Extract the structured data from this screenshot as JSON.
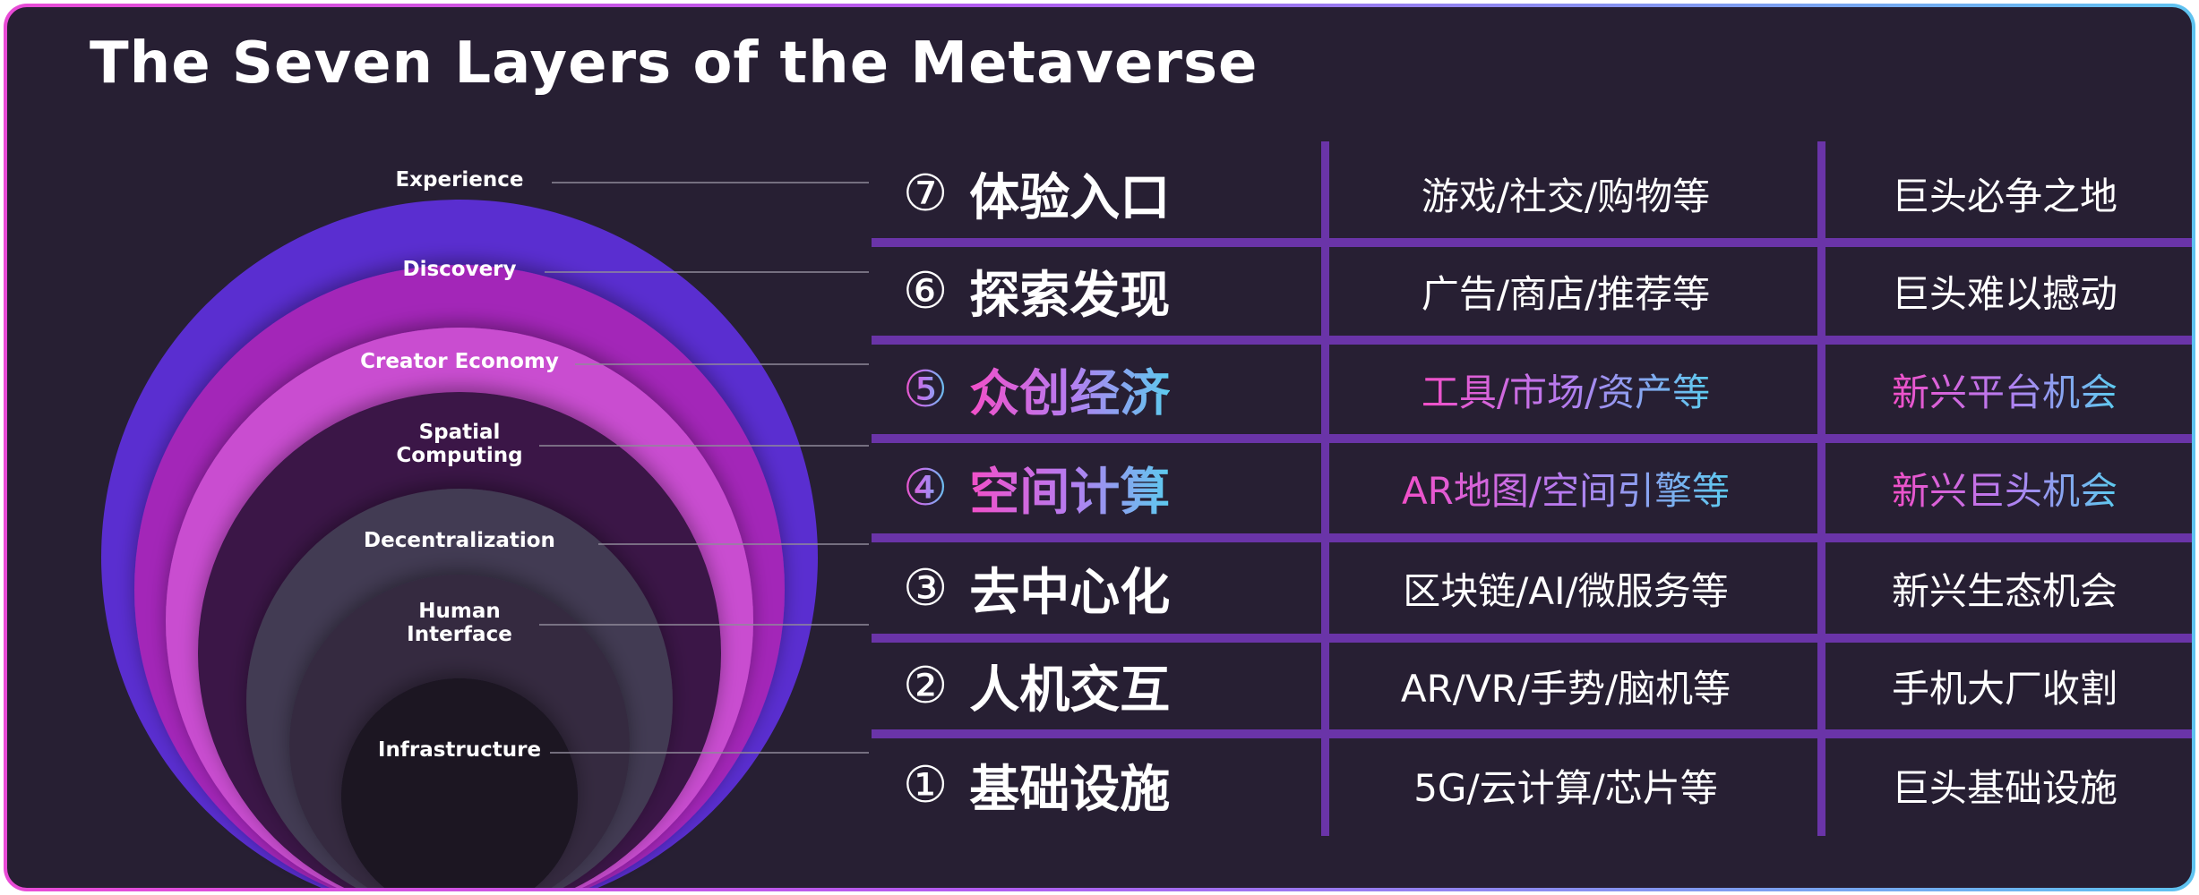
{
  "title": "The Seven Layers of the Metaverse",
  "colors": {
    "background": "#271f33",
    "grid": "#6a34a8",
    "highlight_gradient": [
      "#f24fc8",
      "#b67cf0",
      "#5ccbef"
    ],
    "ring_experience": "#5a2ed0",
    "ring_discovery": "#a326b8",
    "ring_creator_economy": "#c94ed0",
    "ring_spatial_computing": "#3a1446",
    "ring_decentralization": "#433a52",
    "ring_human_interface": "#342b40",
    "ring_infrastructure": "#1a1420"
  },
  "circle_labels": [
    {
      "text": "Experience"
    },
    {
      "text": "Discovery"
    },
    {
      "text": "Creator Economy"
    },
    {
      "text": "Spatial\nComputing"
    },
    {
      "text": "Decentralization"
    },
    {
      "text": "Human\nInterface"
    },
    {
      "text": "Infrastructure"
    }
  ],
  "rows": [
    {
      "num": "⑦",
      "layer": "体验入口",
      "examples": "游戏/社交/购物等",
      "note": "巨头必争之地",
      "highlight": false
    },
    {
      "num": "⑥",
      "layer": "探索发现",
      "examples": "广告/商店/推荐等",
      "note": "巨头难以撼动",
      "highlight": false
    },
    {
      "num": "⑤",
      "layer": "众创经济",
      "examples": "工具/市场/资产等",
      "note": "新兴平台机会",
      "highlight": true
    },
    {
      "num": "④",
      "layer": "空间计算",
      "examples": "AR地图/空间引擎等",
      "note": "新兴巨头机会",
      "highlight": true
    },
    {
      "num": "③",
      "layer": "去中心化",
      "examples": "区块链/AI/微服务等",
      "note": "新兴生态机会",
      "highlight": false
    },
    {
      "num": "②",
      "layer": "人机交互",
      "examples": "AR/VR/手势/脑机等",
      "note": "手机大厂收割",
      "highlight": false
    },
    {
      "num": "①",
      "layer": "基础设施",
      "examples": "5G/云计算/芯片等",
      "note": "巨头基础设施",
      "highlight": false
    }
  ]
}
